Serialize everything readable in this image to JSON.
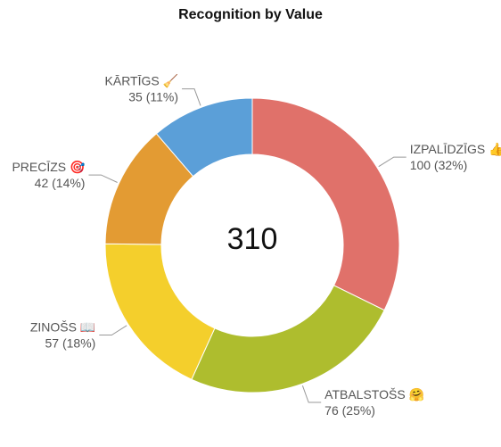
{
  "chart_data": {
    "type": "pie",
    "variant": "donut",
    "title": "Recognition by Value",
    "total_label": "310",
    "slices": [
      {
        "name": "IZPALĪDZĪGS",
        "emoji": "👍",
        "value": 100,
        "percent_label": "32%",
        "color": "#e0716a"
      },
      {
        "name": "ATBALSTOŠS",
        "emoji": "🤗",
        "value": 76,
        "percent_label": "25%",
        "color": "#aebd2e"
      },
      {
        "name": "ZINOŠS",
        "emoji": "📖",
        "value": 57,
        "percent_label": "18%",
        "color": "#f4cf2c"
      },
      {
        "name": "PRECĪZS",
        "emoji": "🎯",
        "value": 42,
        "percent_label": "14%",
        "color": "#e39b33"
      },
      {
        "name": "KĀRTĪGS",
        "emoji": "🧹",
        "value": 35,
        "percent_label": "11%",
        "color": "#5b9fd8"
      }
    ]
  }
}
